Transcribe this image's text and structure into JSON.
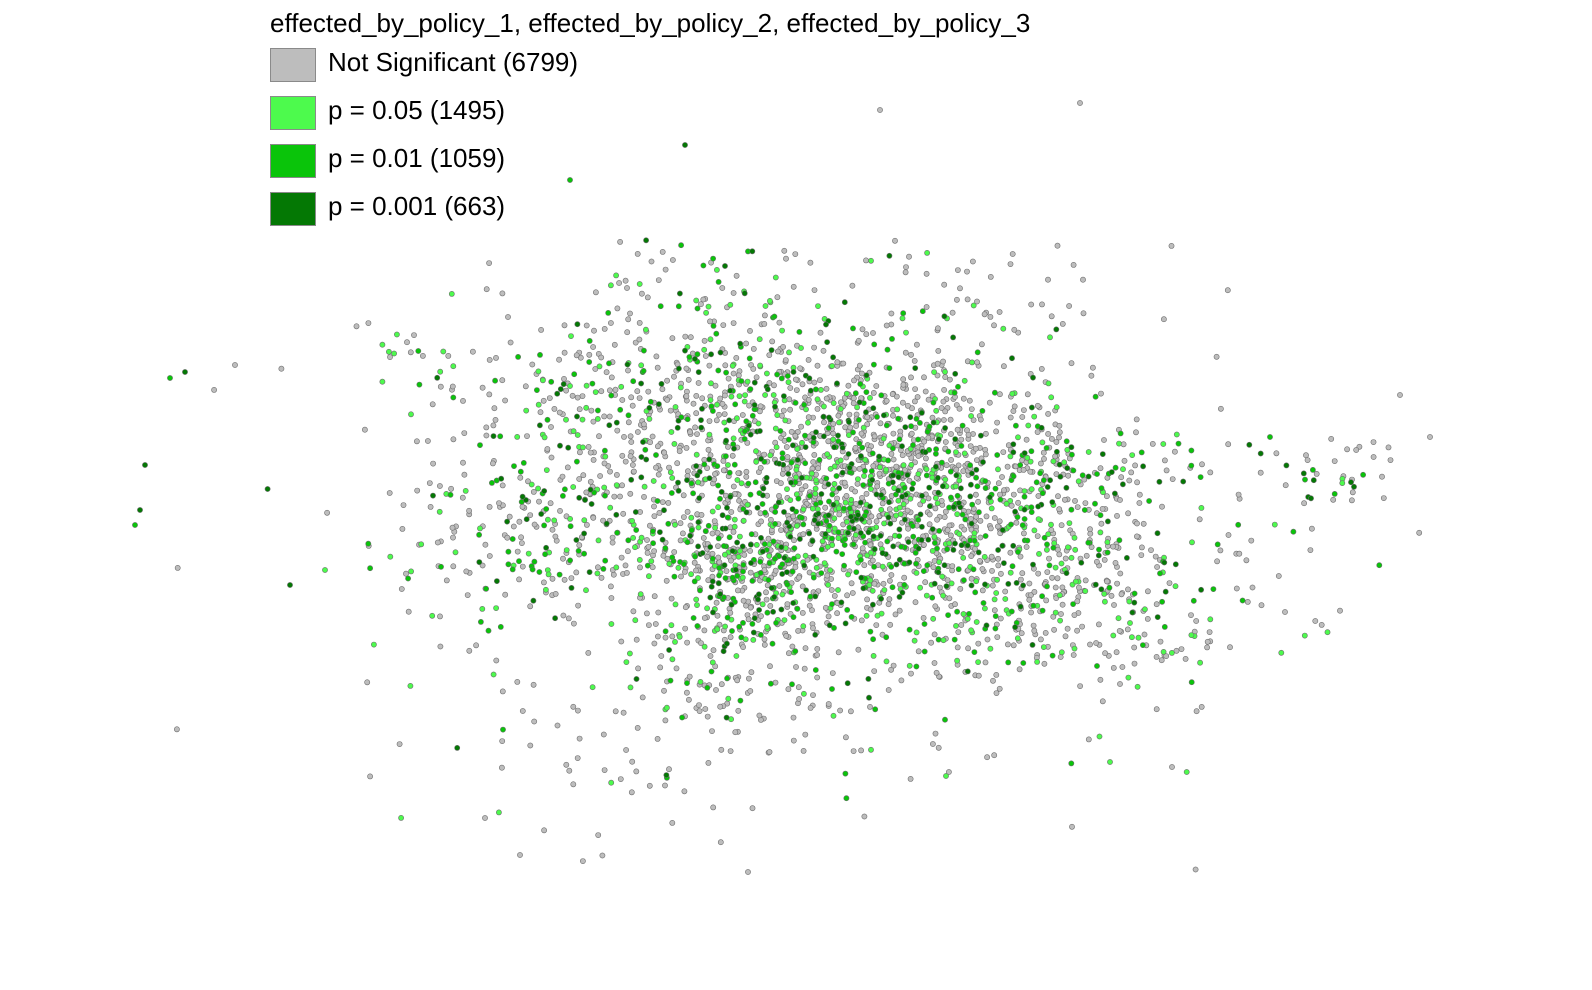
{
  "title": "effected_by_policy_1, effected_by_policy_2, effected_by_policy_3",
  "legend": [
    {
      "label": "Not Significant (6799)",
      "color": "#bdbdbd",
      "count": 6799
    },
    {
      "label": "p = 0.05 (1495)",
      "color": "#4dfa4d",
      "count": 1495
    },
    {
      "label": "p = 0.01 (1059)",
      "color": "#0ac40a",
      "count": 1059
    },
    {
      "label": "p = 0.001 (663)",
      "color": "#047804",
      "count": 663
    }
  ],
  "point_style": {
    "stroke": "#6e6e6e"
  }
}
